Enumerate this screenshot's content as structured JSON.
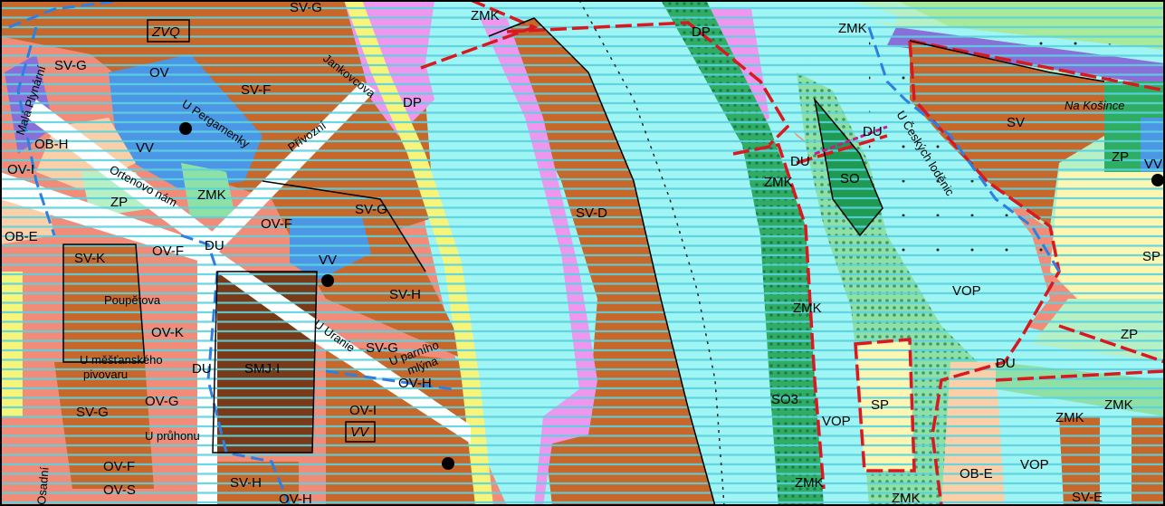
{
  "colors": {
    "water": "#9ff4f4",
    "water_hatch": "#5fd6e0",
    "residential_brown": "#c8672a",
    "dark_brown": "#7a3a18",
    "salmon": "#f28c78",
    "blue": "#4b97e6",
    "green": "#2fae63",
    "light_green": "#8ee0a5",
    "pale_green": "#b6f0c4",
    "pink": "#ef96ef",
    "yellow": "#f6f57a",
    "light_yellow": "#fdf6b2",
    "peach": "#fbd0a8",
    "purple": "#8a6fd8",
    "border_red": "#d9191f",
    "border_blue": "#2f7fe0",
    "road_white": "#ffffff"
  },
  "zone_labels": [
    {
      "id": "sv-g-top",
      "text": "SV-G"
    },
    {
      "id": "zvq",
      "text": "ZVQ"
    },
    {
      "id": "sv-g-left",
      "text": "SV-G"
    },
    {
      "id": "ov-top",
      "text": "OV"
    },
    {
      "id": "sv-f",
      "text": "SV-F"
    },
    {
      "id": "dp-1",
      "text": "DP"
    },
    {
      "id": "zmk-top",
      "text": "ZMK"
    },
    {
      "id": "dp-2",
      "text": "DP"
    },
    {
      "id": "zmk-top-right",
      "text": "ZMK"
    },
    {
      "id": "ob-h",
      "text": "OB-H"
    },
    {
      "id": "vv-1",
      "text": "VV"
    },
    {
      "id": "ov-i-left",
      "text": "OV-I"
    },
    {
      "id": "zmk-1",
      "text": "ZMK"
    },
    {
      "id": "zp-left",
      "text": "ZP"
    },
    {
      "id": "sv-g-mid",
      "text": "SV-G"
    },
    {
      "id": "ov-f-mid",
      "text": "OV-F"
    },
    {
      "id": "sv-d",
      "text": "SV-D"
    },
    {
      "id": "zmk-mid",
      "text": "ZMK"
    },
    {
      "id": "du-1",
      "text": "DU"
    },
    {
      "id": "so-1",
      "text": "SO"
    },
    {
      "id": "du-2",
      "text": "DU"
    },
    {
      "id": "sv-right",
      "text": "SV"
    },
    {
      "id": "zp-right",
      "text": "ZP"
    },
    {
      "id": "vv-right",
      "text": "VV"
    },
    {
      "id": "du-3",
      "text": "DU"
    },
    {
      "id": "ob-e",
      "text": "OB-E"
    },
    {
      "id": "sv-k",
      "text": "SV-K"
    },
    {
      "id": "ov-f-2",
      "text": "OV-F"
    },
    {
      "id": "vv-2",
      "text": "VV"
    },
    {
      "id": "sv-h",
      "text": "SV-H"
    },
    {
      "id": "sp-right",
      "text": "SP"
    },
    {
      "id": "vop-1",
      "text": "VOP"
    },
    {
      "id": "zmk-2",
      "text": "ZMK"
    },
    {
      "id": "ov-k",
      "text": "OV-K"
    },
    {
      "id": "smj-i",
      "text": "SMJ-I"
    },
    {
      "id": "sv-g-3",
      "text": "SV-G"
    },
    {
      "id": "du-4",
      "text": "DU"
    },
    {
      "id": "ov-h",
      "text": "OV-H"
    },
    {
      "id": "du-5",
      "text": "DU"
    },
    {
      "id": "zp-right-2",
      "text": "ZP"
    },
    {
      "id": "zmk-3",
      "text": "ZMK"
    },
    {
      "id": "ov-g",
      "text": "OV-G"
    },
    {
      "id": "sv-g-4",
      "text": "SV-G"
    },
    {
      "id": "ov-i-2",
      "text": "OV-I"
    },
    {
      "id": "vv-box",
      "text": "VV"
    },
    {
      "id": "so3",
      "text": "SO3"
    },
    {
      "id": "vop-2",
      "text": "VOP"
    },
    {
      "id": "sp-2",
      "text": "SP"
    },
    {
      "id": "zmk-4",
      "text": "ZMK"
    },
    {
      "id": "ov-f-3",
      "text": "OV-F"
    },
    {
      "id": "ov-s",
      "text": "OV-S"
    },
    {
      "id": "sv-h-2",
      "text": "SV-H"
    },
    {
      "id": "ov-h-2",
      "text": "OV-H"
    },
    {
      "id": "zmk-5",
      "text": "ZMK"
    },
    {
      "id": "zmk-6",
      "text": "ZMK"
    },
    {
      "id": "ob-e-2",
      "text": "OB-E"
    },
    {
      "id": "vop-3",
      "text": "VOP"
    },
    {
      "id": "sv-e",
      "text": "SV-E"
    }
  ],
  "street_labels": [
    {
      "id": "jankovcova",
      "text": "Jankovcova"
    },
    {
      "id": "u-pergamenky",
      "text": "U Pergamenky"
    },
    {
      "id": "privozni",
      "text": "Přívozní"
    },
    {
      "id": "ortenovo",
      "text": "Ortenovo nám"
    },
    {
      "id": "mala-plynarni",
      "text": "Malá Plynární"
    },
    {
      "id": "poupetova",
      "text": "Poupětova"
    },
    {
      "id": "u-mestanskeho",
      "text": "U měšťanského"
    },
    {
      "id": "pivovaru",
      "text": "pivovaru"
    },
    {
      "id": "u-uranie",
      "text": "U Uranie"
    },
    {
      "id": "u-parniho",
      "text": "U parního"
    },
    {
      "id": "mlyna",
      "text": "mlýna"
    },
    {
      "id": "u-prulohu",
      "text": "U průhonu"
    },
    {
      "id": "osadni",
      "text": "Osadní"
    },
    {
      "id": "na-kosince",
      "text": "Na Košince"
    },
    {
      "id": "u-ceskych",
      "text": "U Českých loděnic"
    }
  ]
}
